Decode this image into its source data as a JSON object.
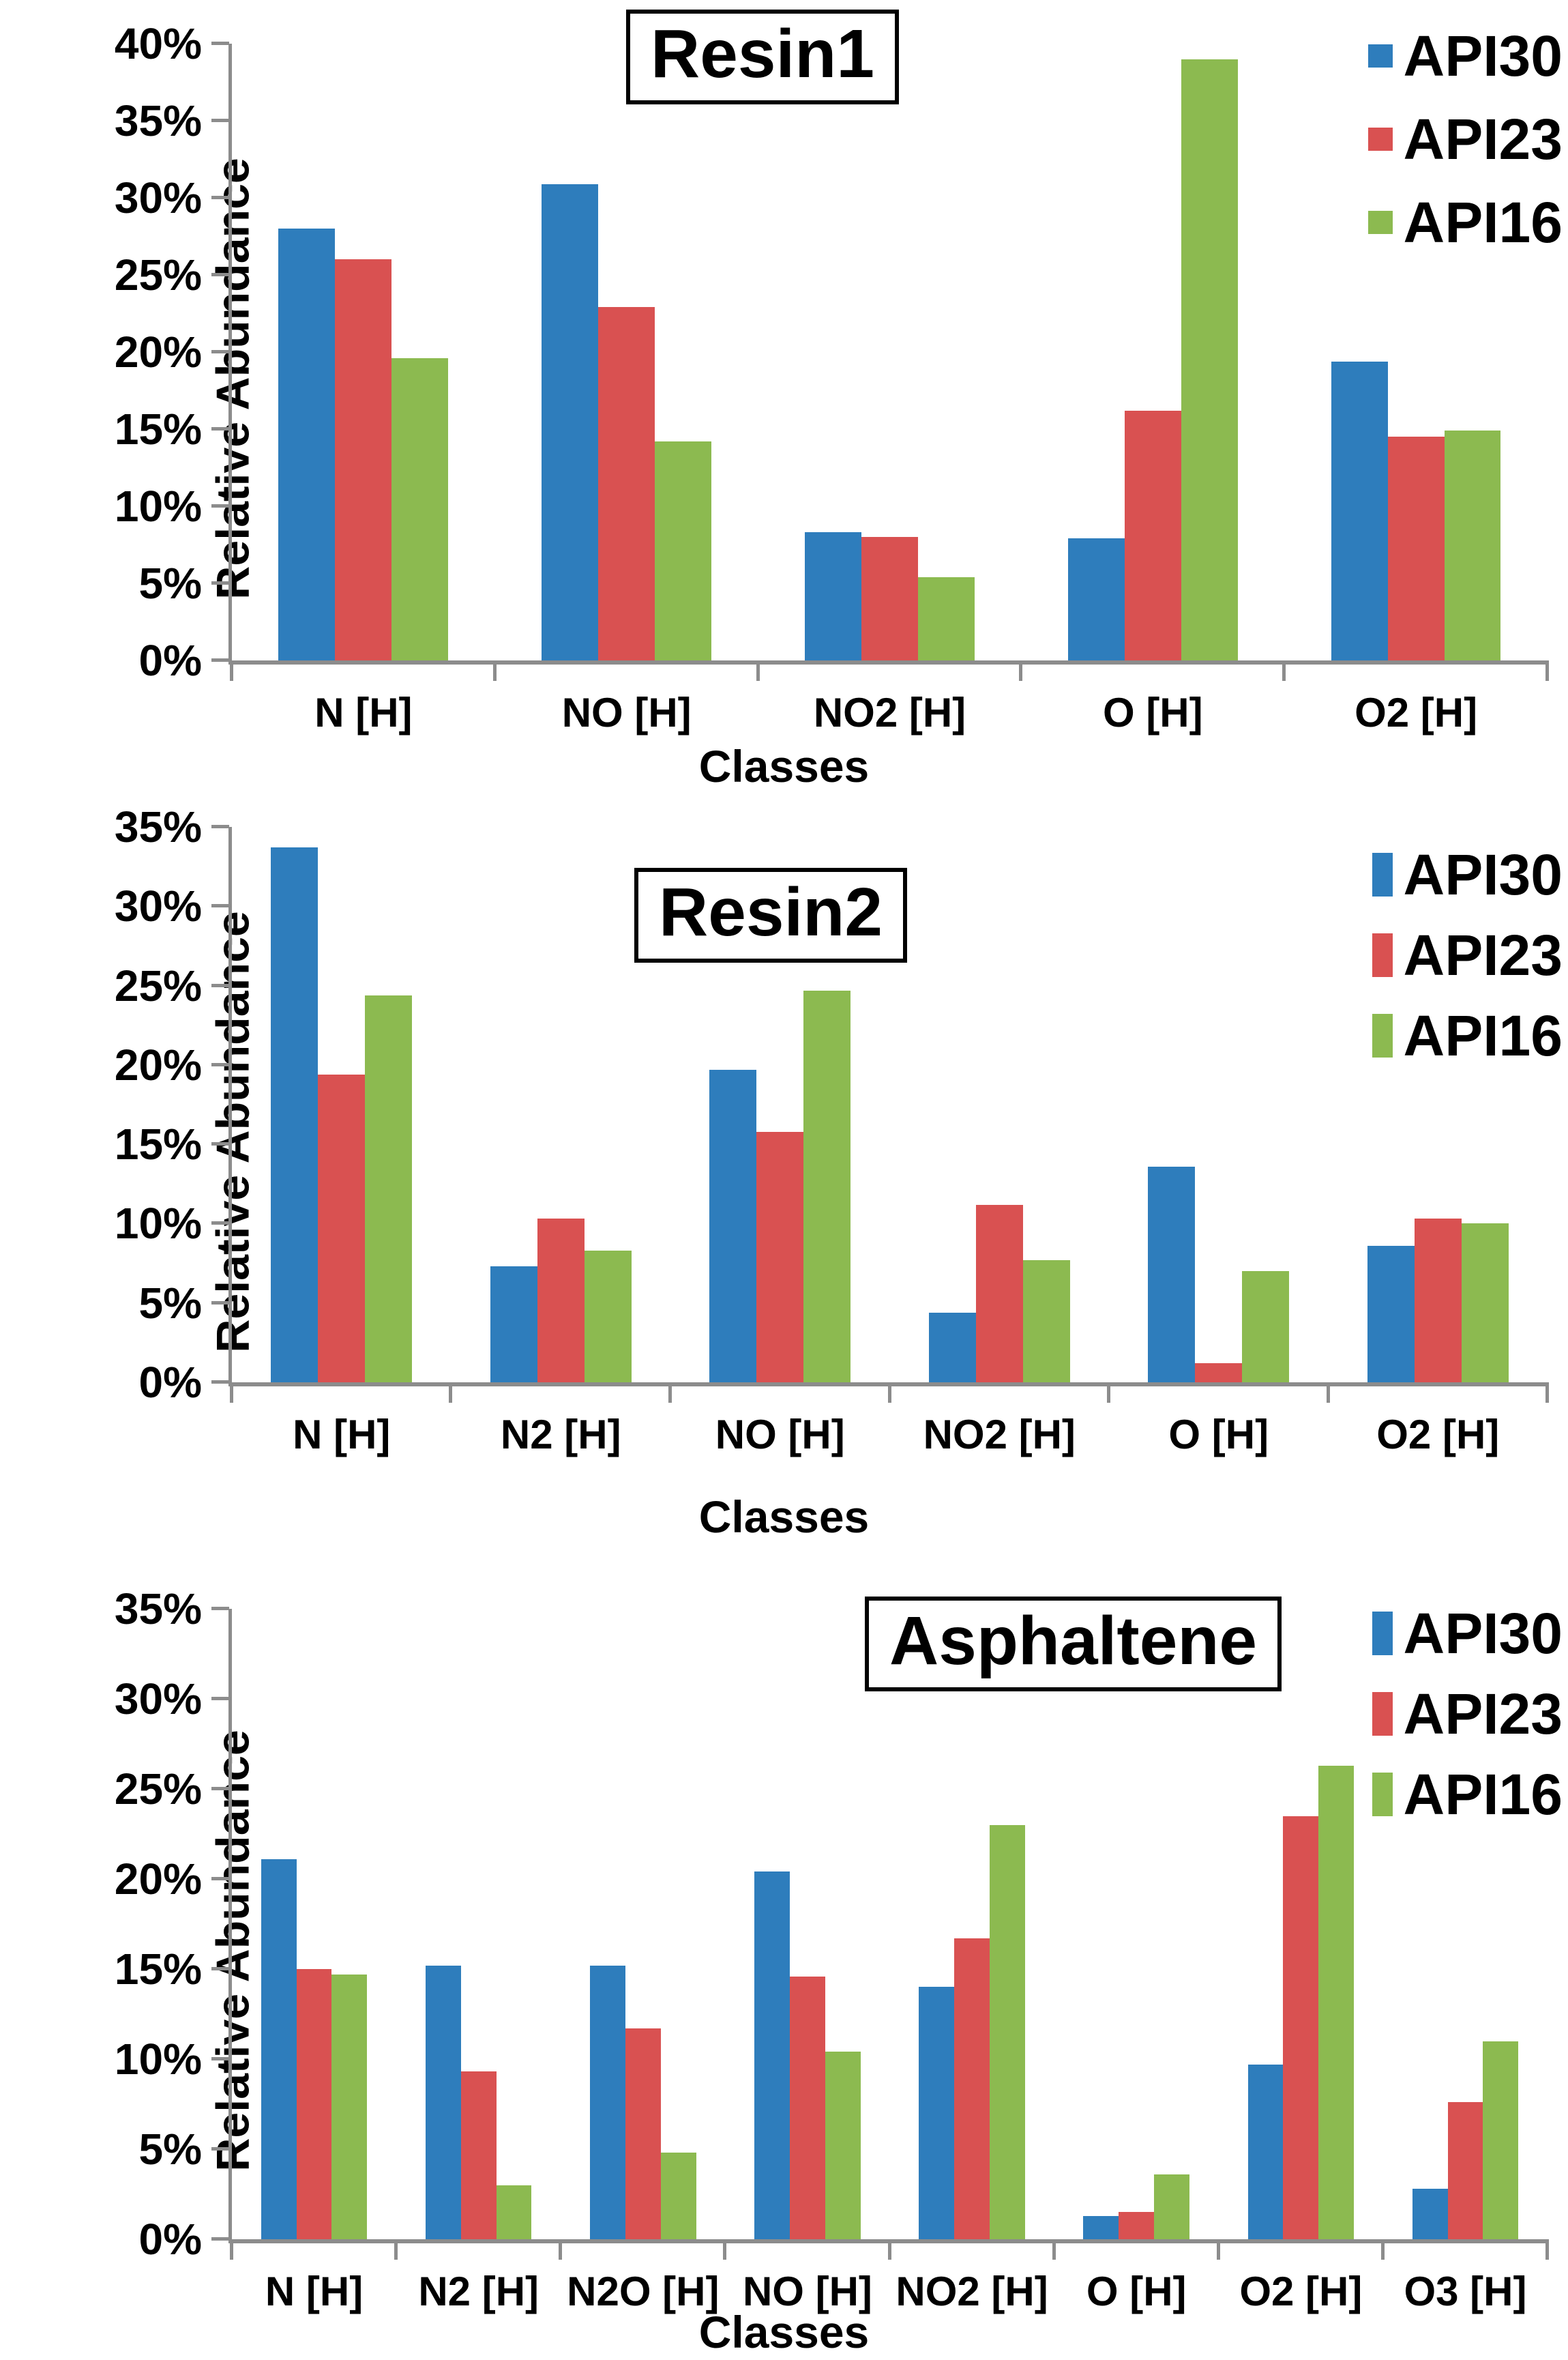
{
  "ylabel": "Relative Abundance",
  "xlabel": "Classes",
  "colors": {
    "api30_blue": "#2E7DBC",
    "api23_red": "#D95151",
    "api16_green": "#8CBA50",
    "axis_gray": "#8C8C8C",
    "text_black": "#000000"
  },
  "legend": [
    "API30",
    "API23",
    "API16"
  ],
  "chart_data": [
    {
      "type": "bar",
      "title": "Resin1",
      "xlabel": "Classes",
      "ylabel": "Relative Abundance",
      "ylim": [
        0,
        40
      ],
      "ytick_step": 5,
      "ytick_labels": [
        "0%",
        "5%",
        "10%",
        "15%",
        "20%",
        "25%",
        "30%",
        "35%",
        "40%"
      ],
      "grid": false,
      "legend_position": "top-right",
      "categories": [
        "N [H]",
        "NO [H]",
        "NO2 [H]",
        "O [H]",
        "O2 [H]"
      ],
      "series": [
        {
          "name": "API30",
          "color": "#2E7DBC",
          "values": [
            28.0,
            30.9,
            8.3,
            7.9,
            19.4
          ]
        },
        {
          "name": "API23",
          "color": "#D95151",
          "values": [
            26.0,
            22.9,
            8.0,
            16.2,
            14.5
          ]
        },
        {
          "name": "API16",
          "color": "#8CBA50",
          "values": [
            19.6,
            14.2,
            5.4,
            39.0,
            14.9
          ]
        }
      ]
    },
    {
      "type": "bar",
      "title": "Resin2",
      "xlabel": "Classes",
      "ylabel": "Relative Abundance",
      "ylim": [
        0,
        35
      ],
      "ytick_step": 5,
      "ytick_labels": [
        "0%",
        "5%",
        "10%",
        "15%",
        "20%",
        "25%",
        "30%",
        "35%"
      ],
      "grid": false,
      "legend_position": "top-right",
      "categories": [
        "N [H]",
        "N2 [H]",
        "NO [H]",
        "NO2 [H]",
        "O [H]",
        "O2 [H]"
      ],
      "series": [
        {
          "name": "API30",
          "color": "#2E7DBC",
          "values": [
            33.7,
            7.3,
            19.7,
            4.4,
            13.6,
            8.6
          ]
        },
        {
          "name": "API23",
          "color": "#D95151",
          "values": [
            19.4,
            10.3,
            15.8,
            11.2,
            1.2,
            10.3
          ]
        },
        {
          "name": "API16",
          "color": "#8CBA50",
          "values": [
            24.4,
            8.3,
            24.7,
            7.7,
            7.0,
            10.0
          ]
        }
      ]
    },
    {
      "type": "bar",
      "title": "Asphaltene",
      "xlabel": "Classes",
      "ylabel": "Relative Abundance",
      "ylim": [
        0,
        35
      ],
      "ytick_step": 5,
      "ytick_labels": [
        "0%",
        "5%",
        "10%",
        "15%",
        "20%",
        "25%",
        "30%",
        "35%"
      ],
      "grid": false,
      "legend_position": "top-right",
      "categories": [
        "N [H]",
        "N2 [H]",
        "N2O [H]",
        "NO [H]",
        "NO2 [H]",
        "O [H]",
        "O2 [H]",
        "O3 [H]"
      ],
      "series": [
        {
          "name": "API30",
          "color": "#2E7DBC",
          "values": [
            21.1,
            15.2,
            15.2,
            20.4,
            14.0,
            1.3,
            9.7,
            2.8
          ]
        },
        {
          "name": "API23",
          "color": "#D95151",
          "values": [
            15.0,
            9.3,
            11.7,
            14.6,
            16.7,
            1.5,
            23.5,
            7.6
          ]
        },
        {
          "name": "API16",
          "color": "#8CBA50",
          "values": [
            14.7,
            3.0,
            4.8,
            10.4,
            23.0,
            3.6,
            26.3,
            11.0
          ]
        }
      ]
    }
  ]
}
